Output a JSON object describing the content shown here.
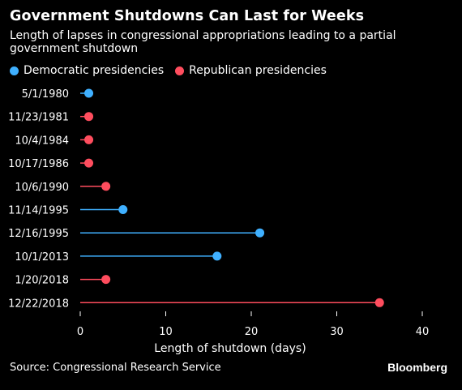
{
  "chart_data": {
    "type": "lollipop",
    "title": "Government Shutdowns Can Last for Weeks",
    "subtitle": "Length of lapses in congressional appropriations leading to a partial government shutdown",
    "xlabel": "Length of shutdown (days)",
    "ylabel": "",
    "xlim": [
      0,
      40
    ],
    "xticks": [
      0,
      10,
      20,
      30,
      40
    ],
    "grid": false,
    "legend_position": "top-left",
    "series": [
      {
        "name": "Democratic presidencies",
        "color": "#3fb0ff"
      },
      {
        "name": "Republican presidencies",
        "color": "#ff4d5e"
      }
    ],
    "categories": [
      "5/1/1980",
      "11/23/1981",
      "10/4/1984",
      "10/17/1986",
      "10/6/1990",
      "11/14/1995",
      "12/16/1995",
      "10/1/2013",
      "1/20/2018",
      "12/22/2018"
    ],
    "values": [
      1,
      1,
      1,
      1,
      3,
      5,
      21,
      16,
      3,
      35
    ],
    "party": [
      "Democratic presidencies",
      "Republican presidencies",
      "Republican presidencies",
      "Republican presidencies",
      "Republican presidencies",
      "Democratic presidencies",
      "Democratic presidencies",
      "Democratic presidencies",
      "Republican presidencies",
      "Republican presidencies"
    ]
  },
  "source": "Source: Congressional Research Service",
  "brand": "Bloomberg"
}
